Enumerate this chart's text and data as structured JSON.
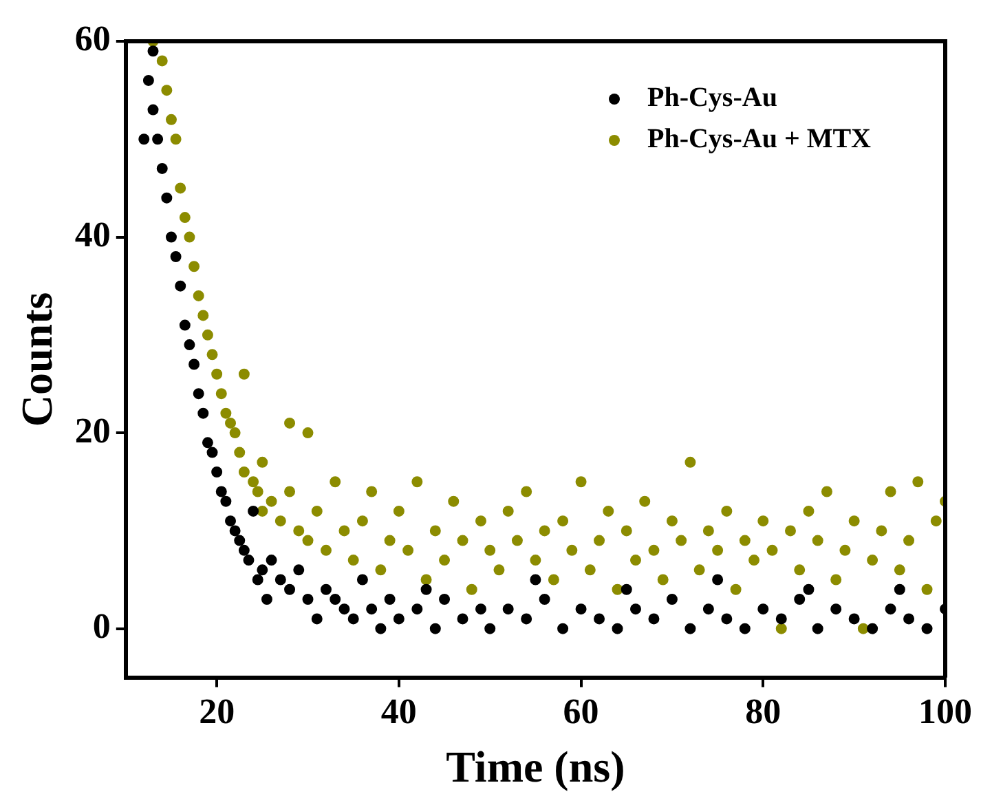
{
  "chart_data": {
    "type": "scatter",
    "xlabel": "Time (ns)",
    "ylabel": "Counts",
    "xlim": [
      10,
      100
    ],
    "ylim": [
      -5,
      60
    ],
    "xticks": [
      20,
      40,
      60,
      80,
      100
    ],
    "yticks": [
      0,
      20,
      40,
      60
    ],
    "grid": false,
    "legend": "top right",
    "marker": "circle",
    "series": [
      {
        "name": "Ph-Cys-Au",
        "color": "#000000",
        "x": [
          12,
          12.5,
          13,
          13,
          13.5,
          14,
          14.5,
          15,
          15.5,
          16,
          16.5,
          17,
          17.5,
          18,
          18.5,
          19,
          19.5,
          20,
          20.5,
          21,
          21.5,
          22,
          22.5,
          23,
          23.5,
          24,
          24.5,
          25,
          25.5,
          26,
          27,
          28,
          29,
          30,
          31,
          32,
          33,
          34,
          35,
          36,
          37,
          38,
          39,
          40,
          42,
          43,
          44,
          45,
          47,
          49,
          50,
          52,
          54,
          55,
          56,
          58,
          60,
          62,
          64,
          65,
          66,
          68,
          70,
          72,
          74,
          75,
          76,
          78,
          80,
          82,
          84,
          85,
          86,
          88,
          90,
          92,
          94,
          95,
          96,
          98,
          100
        ],
        "values": [
          50,
          56,
          59,
          53,
          50,
          47,
          44,
          40,
          38,
          35,
          31,
          29,
          27,
          24,
          22,
          19,
          18,
          16,
          14,
          13,
          11,
          10,
          9,
          8,
          7,
          12,
          5,
          6,
          3,
          7,
          5,
          4,
          6,
          3,
          1,
          4,
          3,
          2,
          1,
          5,
          2,
          0,
          3,
          1,
          2,
          4,
          0,
          3,
          1,
          2,
          0,
          2,
          1,
          5,
          3,
          0,
          2,
          1,
          0,
          4,
          2,
          1,
          3,
          0,
          2,
          5,
          1,
          0,
          2,
          1,
          3,
          4,
          0,
          2,
          1,
          0,
          2,
          4,
          1,
          0,
          2
        ]
      },
      {
        "name": "Ph-Cys-Au + MTX",
        "color": "#8c8c00",
        "x": [
          13,
          14,
          14.5,
          15,
          15.5,
          16,
          16.5,
          17,
          17.5,
          18,
          18.5,
          19,
          19.5,
          20,
          20.5,
          21,
          21.5,
          22,
          22.5,
          23,
          23,
          24,
          24.5,
          25,
          25,
          26,
          27,
          28,
          28,
          29,
          30,
          30,
          31,
          32,
          33,
          34,
          35,
          36,
          37,
          38,
          39,
          40,
          41,
          42,
          43,
          44,
          45,
          46,
          47,
          48,
          49,
          50,
          51,
          52,
          53,
          54,
          55,
          56,
          57,
          58,
          59,
          60,
          61,
          62,
          63,
          64,
          65,
          66,
          67,
          68,
          69,
          70,
          71,
          72,
          73,
          74,
          75,
          76,
          77,
          78,
          79,
          80,
          81,
          82,
          83,
          84,
          85,
          86,
          87,
          88,
          89,
          90,
          91,
          92,
          93,
          94,
          95,
          96,
          97,
          98,
          99,
          100
        ],
        "values": [
          60,
          58,
          55,
          52,
          50,
          45,
          42,
          40,
          37,
          34,
          32,
          30,
          28,
          26,
          24,
          22,
          21,
          20,
          18,
          26,
          16,
          15,
          14,
          17,
          12,
          13,
          11,
          21,
          14,
          10,
          20,
          9,
          12,
          8,
          15,
          10,
          7,
          11,
          14,
          6,
          9,
          12,
          8,
          15,
          5,
          10,
          7,
          13,
          9,
          4,
          11,
          8,
          6,
          12,
          9,
          14,
          7,
          10,
          5,
          11,
          8,
          15,
          6,
          9,
          12,
          4,
          10,
          7,
          13,
          8,
          5,
          11,
          9,
          17,
          6,
          10,
          8,
          12,
          4,
          9,
          7,
          11,
          8,
          0,
          10,
          6,
          12,
          9,
          14,
          5,
          8,
          11,
          0,
          7,
          10,
          14,
          6,
          9,
          15,
          4,
          11,
          13
        ]
      }
    ]
  }
}
